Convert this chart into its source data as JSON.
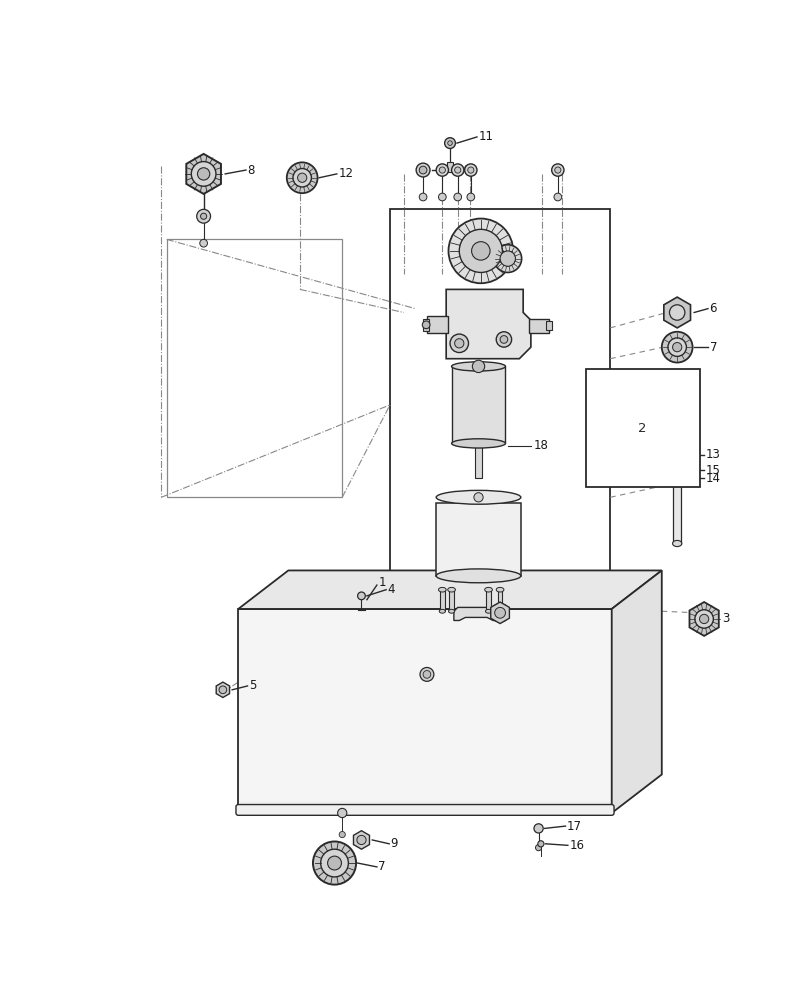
{
  "bg_color": "#ffffff",
  "lc": "#2a2a2a",
  "dc": "#666666",
  "gray1": "#e8e8e8",
  "gray2": "#d8d8d8",
  "gray3": "#c8c8c8",
  "gray4": "#b8b8b8",
  "gray5": "#f2f2f2"
}
